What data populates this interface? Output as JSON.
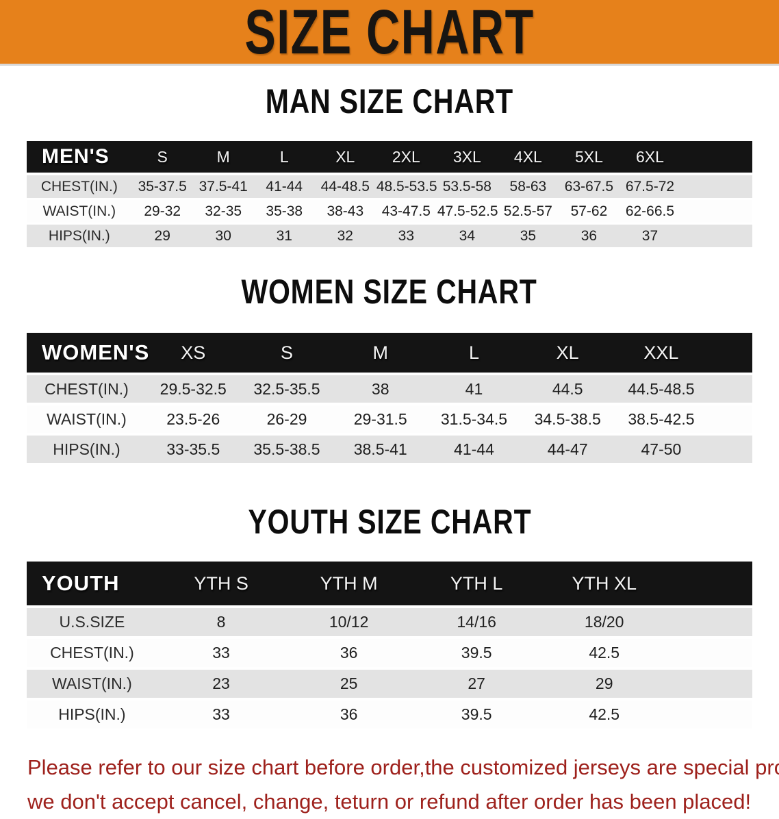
{
  "banner": {
    "title": "SIZE CHART",
    "bg_color": "#E6811B",
    "text_color": "#181512"
  },
  "sections": [
    {
      "heading": "MAN SIZE CHART",
      "table": {
        "header_label": "MEN'S",
        "columns": [
          "S",
          "M",
          "L",
          "XL",
          "2XL",
          "3XL",
          "4XL",
          "5XL",
          "6XL"
        ],
        "rows": [
          {
            "label": "CHEST(IN.)",
            "values": [
              "35-37.5",
              "37.5-41",
              "41-44",
              "44-48.5",
              "48.5-53.5",
              "53.5-58",
              "58-63",
              "63-67.5",
              "67.5-72"
            ]
          },
          {
            "label": "WAIST(IN.)",
            "values": [
              "29-32",
              "32-35",
              "35-38",
              "38-43",
              "43-47.5",
              "47.5-52.5",
              "52.5-57",
              "57-62",
              "62-66.5"
            ]
          },
          {
            "label": "HIPS(IN.)",
            "values": [
              "29",
              "30",
              "31",
              "32",
              "33",
              "34",
              "35",
              "36",
              "37"
            ]
          }
        ]
      }
    },
    {
      "heading": "WOMEN SIZE CHART",
      "table": {
        "header_label": "WOMEN'S",
        "columns": [
          "XS",
          "S",
          "M",
          "L",
          "XL",
          "XXL"
        ],
        "rows": [
          {
            "label": "CHEST(IN.)",
            "values": [
              "29.5-32.5",
              "32.5-35.5",
              "38",
              "41",
              "44.5",
              "44.5-48.5"
            ]
          },
          {
            "label": "WAIST(IN.)",
            "values": [
              "23.5-26",
              "26-29",
              "29-31.5",
              "31.5-34.5",
              "34.5-38.5",
              "38.5-42.5"
            ]
          },
          {
            "label": "HIPS(IN.)",
            "values": [
              "33-35.5",
              "35.5-38.5",
              "38.5-41",
              "41-44",
              "44-47",
              "47-50"
            ]
          }
        ]
      }
    },
    {
      "heading": "YOUTH SIZE CHART",
      "table": {
        "header_label": "YOUTH",
        "columns": [
          "YTH S",
          "YTH M",
          "YTH L",
          "YTH XL"
        ],
        "rows": [
          {
            "label": "U.S.SIZE",
            "values": [
              "8",
              "10/12",
              "14/16",
              "18/20"
            ]
          },
          {
            "label": "CHEST(IN.)",
            "values": [
              "33",
              "36",
              "39.5",
              "42.5"
            ]
          },
          {
            "label": "WAIST(IN.)",
            "values": [
              "23",
              "25",
              "27",
              "29"
            ]
          },
          {
            "label": "HIPS(IN.)",
            "values": [
              "33",
              "36",
              "39.5",
              "42.5"
            ]
          }
        ]
      }
    }
  ],
  "footer": {
    "line1": "Please refer to our size chart before order,the customized jerseys are special products,",
    "line2": "we don't accept cancel, change, teturn or refund after order has been placed!",
    "color": "#9E211C"
  },
  "colors": {
    "banner_orange": "#E6811B",
    "header_bar_black": "#141414",
    "row_stripe_gray": "#E3E3E3",
    "notice_red": "#9E211C"
  }
}
